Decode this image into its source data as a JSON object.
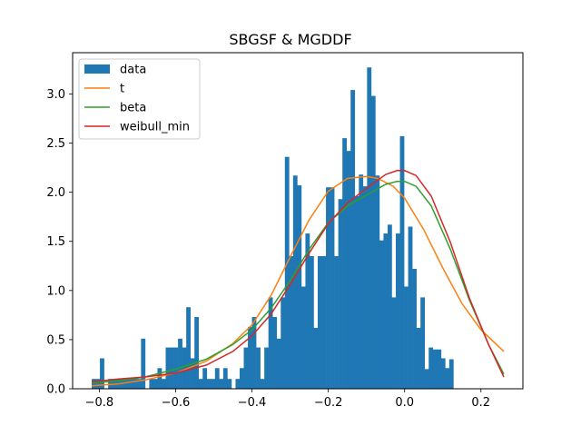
{
  "chart_data": {
    "type": "histogram",
    "title": "SBGSF & MGDDF",
    "xlabel": "",
    "ylabel": "",
    "xlim": [
      -0.87,
      0.31
    ],
    "ylim": [
      0,
      3.42
    ],
    "xticks": [
      -0.8,
      -0.6,
      -0.4,
      -0.2,
      0.0,
      0.2
    ],
    "xtick_labels": [
      "−0.8",
      "−0.6",
      "−0.4",
      "−0.2",
      "0.0",
      "0.2"
    ],
    "yticks": [
      0.0,
      0.5,
      1.0,
      1.5,
      2.0,
      2.5,
      3.0
    ],
    "ytick_labels": [
      "0.0",
      "0.5",
      "1.0",
      "1.5",
      "2.0",
      "2.5",
      "3.0"
    ],
    "grid": false,
    "legend_position": "upper left",
    "legend": [
      {
        "label": "data",
        "kind": "patch",
        "color": "#1f77b4"
      },
      {
        "label": "t",
        "kind": "line",
        "color": "#ff7f0e"
      },
      {
        "label": "beta",
        "kind": "line",
        "color": "#2ca02c"
      },
      {
        "label": "weibull_min",
        "kind": "line",
        "color": "#d62728"
      }
    ],
    "histogram": {
      "name": "data",
      "color": "#1f77b4",
      "bin_start": -0.82,
      "bin_width": 0.01077,
      "values": [
        0.1,
        0.1,
        0.31,
        0.0,
        0.1,
        0.1,
        0.1,
        0.1,
        0.1,
        0.1,
        0.1,
        0.1,
        0.51,
        0.0,
        0.1,
        0.1,
        0.21,
        0.1,
        0.42,
        0.42,
        0.42,
        0.51,
        0.42,
        0.83,
        0.31,
        0.73,
        0.1,
        0.21,
        0.1,
        0.1,
        0.21,
        0.1,
        0.21,
        0.1,
        0.0,
        0.1,
        0.21,
        0.42,
        0.63,
        0.73,
        0.42,
        0.1,
        0.42,
        0.93,
        0.73,
        0.51,
        0.93,
        2.36,
        1.35,
        2.17,
        2.07,
        1.04,
        1.58,
        1.35,
        0.62,
        1.35,
        1.35,
        2.05,
        2.05,
        1.35,
        1.93,
        2.55,
        2.42,
        3.04,
        1.96,
        2.18,
        2.06,
        3.27,
        2.98,
        2.17,
        1.51,
        1.58,
        1.67,
        0.93,
        1.58,
        2.57,
        1.04,
        1.65,
        1.22,
        0.62,
        0.93,
        0.2,
        0.42,
        0.4,
        0.4,
        0.31,
        0.21,
        0.3
      ],
      "values_note_only": ""
    },
    "series": [
      {
        "name": "t",
        "color": "#ff7f0e",
        "x": [
          -0.82,
          -0.75,
          -0.68,
          -0.6,
          -0.52,
          -0.45,
          -0.4,
          -0.35,
          -0.3,
          -0.25,
          -0.2,
          -0.15,
          -0.1,
          -0.07,
          -0.03,
          0.0,
          0.05,
          0.1,
          0.15,
          0.2,
          0.26
        ],
        "y": [
          0.03,
          0.05,
          0.09,
          0.16,
          0.28,
          0.46,
          0.65,
          0.95,
          1.34,
          1.72,
          2.01,
          2.14,
          2.16,
          2.14,
          2.06,
          1.94,
          1.62,
          1.23,
          0.87,
          0.6,
          0.38
        ]
      },
      {
        "name": "beta",
        "color": "#2ca02c",
        "x": [
          -0.82,
          -0.75,
          -0.68,
          -0.6,
          -0.52,
          -0.45,
          -0.4,
          -0.35,
          -0.3,
          -0.25,
          -0.2,
          -0.15,
          -0.1,
          -0.05,
          -0.02,
          0.0,
          0.03,
          0.07,
          0.12,
          0.17,
          0.22,
          0.26
        ],
        "y": [
          0.06,
          0.08,
          0.12,
          0.2,
          0.3,
          0.45,
          0.6,
          0.82,
          1.1,
          1.42,
          1.69,
          1.86,
          1.97,
          2.08,
          2.11,
          2.11,
          2.06,
          1.86,
          1.42,
          0.9,
          0.45,
          0.15
        ]
      },
      {
        "name": "weibull_min",
        "color": "#d62728",
        "x": [
          -0.82,
          -0.75,
          -0.68,
          -0.6,
          -0.52,
          -0.45,
          -0.4,
          -0.35,
          -0.3,
          -0.25,
          -0.2,
          -0.15,
          -0.1,
          -0.05,
          -0.02,
          0.0,
          0.03,
          0.07,
          0.12,
          0.17,
          0.22,
          0.26
        ],
        "y": [
          0.07,
          0.1,
          0.12,
          0.16,
          0.24,
          0.38,
          0.54,
          0.76,
          1.06,
          1.38,
          1.68,
          1.89,
          2.04,
          2.18,
          2.22,
          2.22,
          2.17,
          1.96,
          1.49,
          0.92,
          0.45,
          0.12
        ]
      }
    ]
  }
}
